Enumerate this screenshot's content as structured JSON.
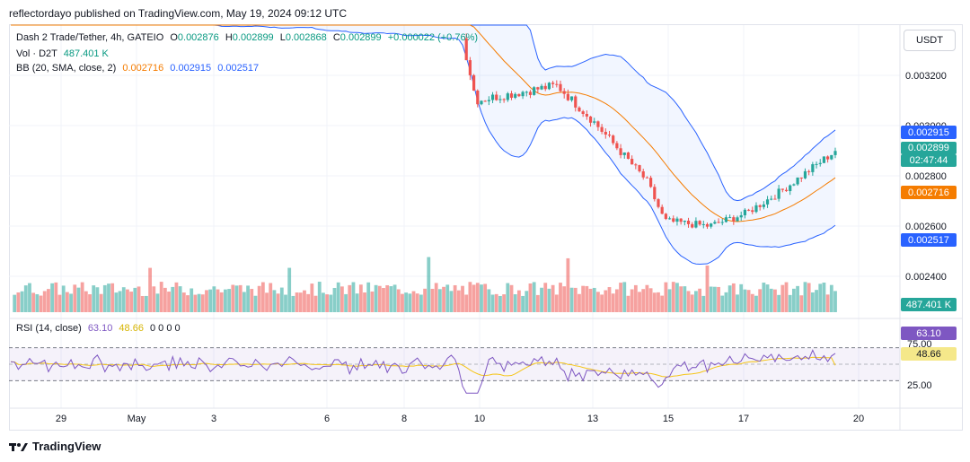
{
  "header": {
    "publisher": "reflectordayo published on TradingView.com, May 19, 2024 09:12 UTC"
  },
  "legend": {
    "symbol": "Dash 2 Trade/Tether, 4h, GATEIO",
    "o_label": "O",
    "o": "0.002876",
    "h_label": "H",
    "h": "0.002899",
    "l_label": "L",
    "l": "0.002868",
    "c_label": "C",
    "c": "0.002899",
    "change": "+0.000022 (+0.76%)",
    "vol_label": "Vol · D2T",
    "vol": "487.401 K",
    "bb_label": "BB (20, SMA, close, 2)",
    "bb_basis": "0.002716",
    "bb_upper": "0.002915",
    "bb_lower": "0.002517",
    "rsi_label": "RSI (14, close)",
    "rsi_value": "63.10",
    "rsi_ma": "48.66",
    "rsi_extra": "0 0 0 0"
  },
  "currency_button": "USDT",
  "footer": {
    "brand": "TradingView"
  },
  "price_tags": {
    "upper": "0.002915",
    "last": "0.002899",
    "countdown": "02:47:44",
    "basis": "0.002716",
    "lower": "0.002517",
    "volume": "487.401 K",
    "rsi": "63.10",
    "rsi_ma": "48.66"
  },
  "colors": {
    "up": "#26a69a",
    "down": "#ef5350",
    "bb_band": "#2962ff",
    "bb_basis": "#f57c00",
    "rsi": "#7e57c2",
    "rsi_ma": "#f5c518"
  },
  "chart_data": {
    "type": "candlestick",
    "price_axis": {
      "range": [
        0.00225,
        0.0034
      ],
      "ticks": [
        "0.003200",
        "0.003000",
        "0.002800",
        "0.002600",
        "0.002400"
      ]
    },
    "rsi_axis": {
      "range": [
        0,
        100
      ],
      "ticks": [
        "75.00",
        "25.00"
      ],
      "overbought": 70,
      "oversold": 30
    },
    "x_ticks": [
      "29",
      "May",
      "3",
      "6",
      "8",
      "10",
      "13",
      "15",
      "17",
      "20"
    ],
    "key_points": [
      {
        "date": "Apr 27",
        "close": 0.00352
      },
      {
        "date": "May 9",
        "close": 0.00343
      },
      {
        "date": "May 10",
        "close": 0.0031
      },
      {
        "date": "May 12",
        "close": 0.00316
      },
      {
        "date": "May 13",
        "close": 0.00302
      },
      {
        "date": "May 14",
        "close": 0.00278
      },
      {
        "date": "May 15",
        "close": 0.00262
      },
      {
        "date": "May 16",
        "close": 0.0026
      },
      {
        "date": "May 17",
        "close": 0.00265
      },
      {
        "date": "May 18",
        "close": 0.00274
      },
      {
        "date": "May 19",
        "close": 0.002899
      }
    ],
    "bollinger": {
      "basis_last": 0.002716,
      "upper_last": 0.002915,
      "lower_last": 0.002517
    },
    "volume_last": 487401,
    "rsi_last": 63.1,
    "rsi_ma_last": 48.66
  }
}
